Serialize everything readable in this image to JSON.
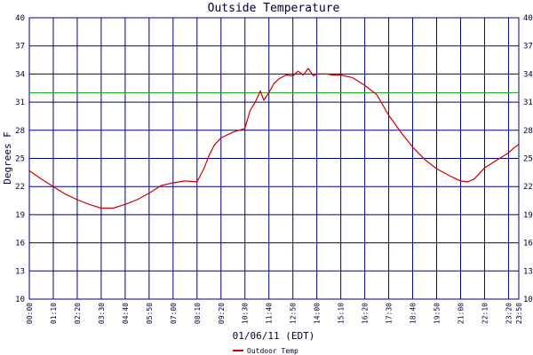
{
  "chart_data": {
    "type": "line",
    "title": "Outside Temperature",
    "xlabel": "01/06/11 (EDT)",
    "ylabel": "Degrees F",
    "ylim": [
      10,
      40
    ],
    "yticks": [
      "10",
      "13",
      "16",
      "19",
      "22",
      "25",
      "28",
      "31",
      "34",
      "37",
      "40"
    ],
    "xticks": [
      "00:00",
      "01:10",
      "02:20",
      "03:30",
      "04:40",
      "05:50",
      "07:00",
      "08:10",
      "09:20",
      "10:30",
      "11:40",
      "12:50",
      "14:00",
      "15:10",
      "16:20",
      "17:30",
      "18:40",
      "19:50",
      "21:00",
      "22:10",
      "23:20",
      "23:50"
    ],
    "grid": true,
    "legend_position": "bottom-center",
    "reference_line": {
      "y": 32,
      "color": "#22aa22"
    },
    "colors": {
      "series": "#cc0000",
      "grid": "#000080",
      "text": "#000033"
    },
    "series": [
      {
        "name": "Outdoor Temp",
        "color": "#cc0000",
        "x": [
          "00:00",
          "00:35",
          "01:10",
          "01:45",
          "02:20",
          "02:55",
          "03:30",
          "04:05",
          "04:40",
          "05:15",
          "05:50",
          "06:25",
          "07:00",
          "07:35",
          "08:10",
          "08:30",
          "08:45",
          "09:00",
          "09:20",
          "09:55",
          "10:30",
          "10:45",
          "11:00",
          "11:15",
          "11:25",
          "11:40",
          "11:55",
          "12:10",
          "12:30",
          "12:50",
          "13:05",
          "13:20",
          "13:35",
          "13:50",
          "14:00",
          "14:15",
          "14:30",
          "14:45",
          "15:10",
          "15:45",
          "16:20",
          "16:55",
          "17:30",
          "18:05",
          "18:40",
          "19:15",
          "19:50",
          "20:25",
          "21:00",
          "21:20",
          "21:40",
          "22:00",
          "22:10",
          "22:45",
          "23:20",
          "23:35",
          "23:50"
        ],
        "values": [
          23.7,
          22.8,
          22.0,
          21.2,
          20.6,
          20.1,
          19.7,
          19.7,
          20.1,
          20.6,
          21.3,
          22.1,
          22.4,
          22.6,
          22.5,
          23.9,
          25.3,
          26.4,
          27.2,
          27.8,
          28.2,
          30.1,
          31.0,
          32.2,
          31.2,
          32.0,
          33.0,
          33.5,
          33.9,
          33.8,
          34.3,
          33.9,
          34.6,
          33.8,
          34.0,
          34.0,
          34.0,
          33.9,
          33.9,
          33.6,
          32.8,
          31.8,
          29.6,
          27.8,
          26.2,
          24.9,
          23.9,
          23.2,
          22.6,
          22.5,
          22.8,
          23.6,
          24.0,
          24.8,
          25.6,
          26.1,
          26.5
        ]
      }
    ]
  }
}
